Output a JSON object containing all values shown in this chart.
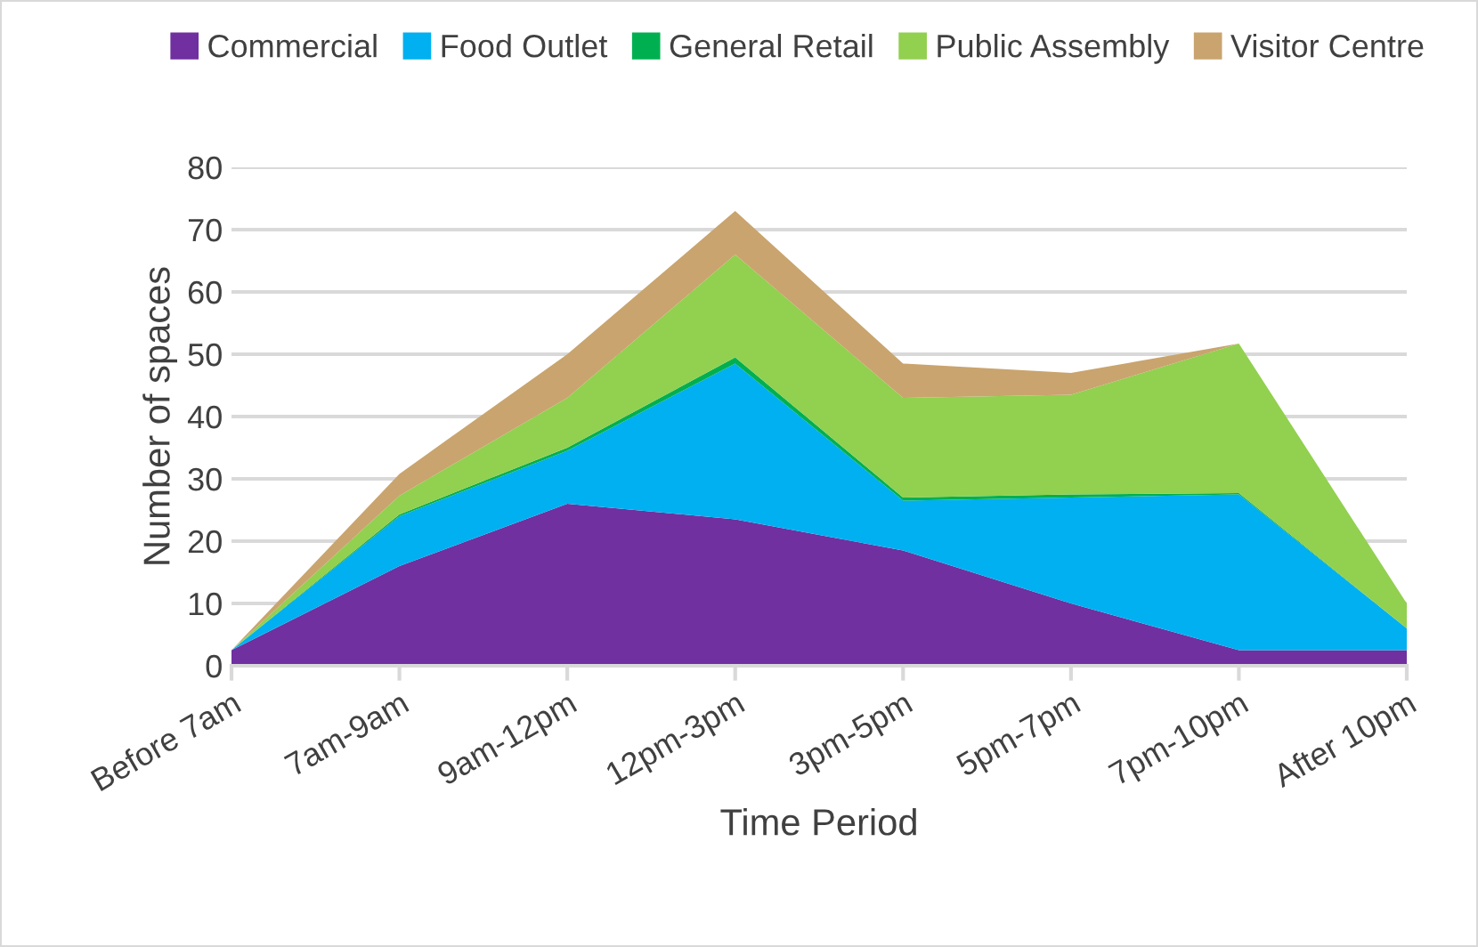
{
  "chart_data": {
    "type": "area",
    "stacked": true,
    "xlabel": "Time Period",
    "ylabel": "Number of spaces",
    "categories": [
      "Before 7am",
      "7am-9am",
      "9am-12pm",
      "12pm-3pm",
      "3pm-5pm",
      "5pm-7pm",
      "7pm-10pm",
      "After 10pm"
    ],
    "series": [
      {
        "name": "Commercial",
        "color": "#7030a0",
        "values": [
          2.5,
          16,
          26,
          23.5,
          18.5,
          10,
          2.5,
          2.5
        ]
      },
      {
        "name": "Food Outlet",
        "color": "#00b0f0",
        "values": [
          0,
          8,
          8.5,
          25,
          8,
          17,
          25,
          3.5
        ]
      },
      {
        "name": "General Retail",
        "color": "#00b050",
        "values": [
          0,
          0.3,
          0.5,
          1,
          0.5,
          0.5,
          0.2,
          0
        ]
      },
      {
        "name": "Public Assembly",
        "color": "#92d050",
        "values": [
          0,
          3,
          8,
          16.5,
          16,
          16,
          24,
          4
        ]
      },
      {
        "name": "Visitor Centre",
        "color": "#c9a46e",
        "values": [
          0,
          3.5,
          7,
          7,
          5.5,
          3.5,
          0,
          0
        ]
      }
    ],
    "ylim": [
      0,
      80
    ],
    "yticks": [
      0,
      10,
      20,
      30,
      40,
      50,
      60,
      70,
      80
    ],
    "grid": "y",
    "legend": "top"
  }
}
